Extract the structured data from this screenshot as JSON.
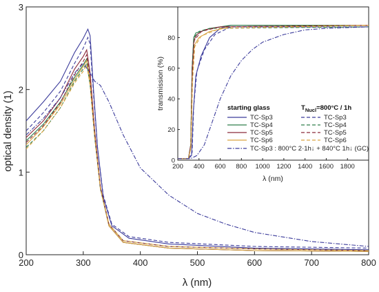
{
  "chart_data": [
    {
      "type": "line",
      "xlabel": "λ (nm)",
      "ylabel": "optical density (1)",
      "xlim": [
        200,
        800
      ],
      "ylim": [
        0,
        3
      ],
      "x_ticks": [
        "200",
        "300",
        "400",
        "500",
        "600",
        "700",
        "800"
      ],
      "y_ticks": [
        "0",
        "1",
        "2",
        "3"
      ],
      "series": [
        {
          "name": "TC-Sp3",
          "group": "starting glass",
          "color": "#3a3a9a",
          "dash": "solid",
          "points": [
            [
              200,
              1.62
            ],
            [
              230,
              1.85
            ],
            [
              260,
              2.1
            ],
            [
              285,
              2.45
            ],
            [
              300,
              2.62
            ],
            [
              308,
              2.73
            ],
            [
              312,
              2.65
            ],
            [
              318,
              2.0
            ],
            [
              325,
              1.3
            ],
            [
              335,
              0.7
            ],
            [
              350,
              0.35
            ],
            [
              380,
              0.2
            ],
            [
              450,
              0.13
            ],
            [
              600,
              0.08
            ],
            [
              800,
              0.06
            ]
          ]
        },
        {
          "name": "TC-Sp4",
          "group": "starting glass",
          "color": "#2e7d4a",
          "dash": "solid",
          "points": [
            [
              200,
              1.38
            ],
            [
              230,
              1.58
            ],
            [
              260,
              1.85
            ],
            [
              285,
              2.15
            ],
            [
              300,
              2.3
            ],
            [
              306,
              2.37
            ],
            [
              312,
              2.1
            ],
            [
              320,
              1.45
            ],
            [
              330,
              0.8
            ],
            [
              345,
              0.35
            ],
            [
              370,
              0.15
            ],
            [
              450,
              0.08
            ],
            [
              600,
              0.05
            ],
            [
              800,
              0.04
            ]
          ]
        },
        {
          "name": "TC-Sp5",
          "group": "starting glass",
          "color": "#8b2a3a",
          "dash": "solid",
          "points": [
            [
              200,
              1.42
            ],
            [
              230,
              1.62
            ],
            [
              260,
              1.9
            ],
            [
              285,
              2.25
            ],
            [
              300,
              2.4
            ],
            [
              306,
              2.48
            ],
            [
              312,
              2.2
            ],
            [
              320,
              1.5
            ],
            [
              330,
              0.82
            ],
            [
              345,
              0.35
            ],
            [
              370,
              0.15
            ],
            [
              450,
              0.08
            ],
            [
              600,
              0.05
            ],
            [
              800,
              0.04
            ]
          ]
        },
        {
          "name": "TC-Sp6",
          "group": "starting glass",
          "color": "#d9a441",
          "dash": "solid",
          "points": [
            [
              200,
              1.33
            ],
            [
              230,
              1.55
            ],
            [
              260,
              1.82
            ],
            [
              285,
              2.12
            ],
            [
              300,
              2.28
            ],
            [
              306,
              2.35
            ],
            [
              312,
              2.1
            ],
            [
              320,
              1.45
            ],
            [
              330,
              0.8
            ],
            [
              345,
              0.35
            ],
            [
              370,
              0.15
            ],
            [
              450,
              0.08
            ],
            [
              600,
              0.05
            ],
            [
              800,
              0.04
            ]
          ]
        },
        {
          "name": "TC-Sp3",
          "group": "TNucl=800°C / 1h",
          "color": "#3a3a9a",
          "dash": "dash",
          "points": [
            [
              200,
              1.5
            ],
            [
              230,
              1.72
            ],
            [
              260,
              1.98
            ],
            [
              285,
              2.32
            ],
            [
              300,
              2.5
            ],
            [
              308,
              2.63
            ],
            [
              312,
              2.55
            ],
            [
              318,
              1.95
            ],
            [
              325,
              1.3
            ],
            [
              335,
              0.72
            ],
            [
              350,
              0.37
            ],
            [
              380,
              0.22
            ],
            [
              450,
              0.15
            ],
            [
              600,
              0.1
            ],
            [
              800,
              0.08
            ]
          ]
        },
        {
          "name": "TC-Sp4",
          "group": "TNucl=800°C / 1h",
          "color": "#2e7d4a",
          "dash": "dash",
          "points": [
            [
              200,
              1.3
            ],
            [
              230,
              1.5
            ],
            [
              260,
              1.78
            ],
            [
              285,
              2.1
            ],
            [
              300,
              2.25
            ],
            [
              306,
              2.32
            ],
            [
              312,
              2.05
            ],
            [
              320,
              1.42
            ],
            [
              330,
              0.8
            ],
            [
              345,
              0.37
            ],
            [
              370,
              0.17
            ],
            [
              450,
              0.1
            ],
            [
              600,
              0.07
            ],
            [
              800,
              0.05
            ]
          ]
        },
        {
          "name": "TC-Sp5",
          "group": "TNucl=800°C / 1h",
          "color": "#8b2a3a",
          "dash": "dash",
          "points": [
            [
              200,
              1.36
            ],
            [
              230,
              1.56
            ],
            [
              260,
              1.84
            ],
            [
              285,
              2.18
            ],
            [
              300,
              2.34
            ],
            [
              306,
              2.42
            ],
            [
              312,
              2.15
            ],
            [
              320,
              1.48
            ],
            [
              330,
              0.82
            ],
            [
              345,
              0.37
            ],
            [
              370,
              0.17
            ],
            [
              450,
              0.1
            ],
            [
              600,
              0.07
            ],
            [
              800,
              0.05
            ]
          ]
        },
        {
          "name": "TC-Sp6",
          "group": "TNucl=800°C / 1h",
          "color": "#d9a441",
          "dash": "dash",
          "points": [
            [
              200,
              1.28
            ],
            [
              230,
              1.5
            ],
            [
              260,
              1.78
            ],
            [
              285,
              2.08
            ],
            [
              300,
              2.22
            ],
            [
              306,
              2.3
            ],
            [
              312,
              2.05
            ],
            [
              320,
              1.42
            ],
            [
              330,
              0.8
            ],
            [
              345,
              0.37
            ],
            [
              370,
              0.17
            ],
            [
              450,
              0.1
            ],
            [
              600,
              0.07
            ],
            [
              800,
              0.05
            ]
          ]
        },
        {
          "name": "TC-Sp3 : 800°C 2·1h↓ + 840°C 1h↓ (GC)",
          "group": "",
          "color": "#3a3a9a",
          "dash": "dashdot",
          "points": [
            [
              200,
              1.45
            ],
            [
              230,
              1.65
            ],
            [
              260,
              1.9
            ],
            [
              285,
              2.2
            ],
            [
              300,
              2.32
            ],
            [
              310,
              2.22
            ],
            [
              320,
              2.1
            ],
            [
              330,
              2.05
            ],
            [
              345,
              1.85
            ],
            [
              370,
              1.45
            ],
            [
              400,
              1.05
            ],
            [
              450,
              0.72
            ],
            [
              500,
              0.5
            ],
            [
              550,
              0.37
            ],
            [
              600,
              0.27
            ],
            [
              700,
              0.16
            ],
            [
              800,
              0.1
            ]
          ]
        }
      ]
    },
    {
      "type": "line",
      "xlabel": "λ (nm)",
      "ylabel": "transmission (%)",
      "xlim": [
        200,
        2000
      ],
      "ylim": [
        0,
        100
      ],
      "x_ticks": [
        "200",
        "400",
        "600",
        "800",
        "1000",
        "1200",
        "1400",
        "1600",
        "1800"
      ],
      "y_ticks": [
        "0",
        "20",
        "40",
        "60",
        "80"
      ],
      "series": [
        {
          "name": "TC-Sp3",
          "color": "#3a3a9a",
          "dash": "solid",
          "points": [
            [
              200,
              1
            ],
            [
              300,
              1
            ],
            [
              330,
              3
            ],
            [
              345,
              30
            ],
            [
              370,
              55
            ],
            [
              420,
              68
            ],
            [
              500,
              80
            ],
            [
              600,
              86
            ],
            [
              700,
              88
            ],
            [
              1000,
              88
            ],
            [
              2000,
              88
            ]
          ]
        },
        {
          "name": "TC-Sp4",
          "color": "#2e7d4a",
          "dash": "solid",
          "points": [
            [
              200,
              1
            ],
            [
              300,
              1
            ],
            [
              322,
              10
            ],
            [
              335,
              60
            ],
            [
              350,
              80
            ],
            [
              370,
              83
            ],
            [
              420,
              84
            ],
            [
              500,
              86
            ],
            [
              700,
              88
            ],
            [
              2000,
              88
            ]
          ]
        },
        {
          "name": "TC-Sp5",
          "color": "#8b2a3a",
          "dash": "solid",
          "points": [
            [
              200,
              1
            ],
            [
              300,
              1
            ],
            [
              322,
              10
            ],
            [
              335,
              60
            ],
            [
              350,
              78
            ],
            [
              380,
              82
            ],
            [
              450,
              85
            ],
            [
              600,
              87
            ],
            [
              2000,
              88
            ]
          ]
        },
        {
          "name": "TC-Sp6",
          "color": "#d9a441",
          "dash": "solid",
          "points": [
            [
              200,
              1
            ],
            [
              300,
              1
            ],
            [
              322,
              8
            ],
            [
              338,
              55
            ],
            [
              355,
              75
            ],
            [
              400,
              80
            ],
            [
              500,
              84
            ],
            [
              700,
              87
            ],
            [
              2000,
              88
            ]
          ]
        },
        {
          "name": "TC-Sp3",
          "color": "#3a3a9a",
          "dash": "dash",
          "points": [
            [
              200,
              1
            ],
            [
              300,
              1
            ],
            [
              335,
              5
            ],
            [
              350,
              35
            ],
            [
              380,
              58
            ],
            [
              450,
              72
            ],
            [
              550,
              82
            ],
            [
              700,
              87
            ],
            [
              2000,
              87
            ]
          ]
        },
        {
          "name": "TC-Sp4",
          "color": "#2e7d4a",
          "dash": "dash",
          "points": [
            [
              200,
              1
            ],
            [
              300,
              1
            ],
            [
              322,
              10
            ],
            [
              336,
              62
            ],
            [
              352,
              80
            ],
            [
              400,
              84
            ],
            [
              500,
              86
            ],
            [
              2000,
              87
            ]
          ]
        },
        {
          "name": "TC-Sp5",
          "color": "#8b2a3a",
          "dash": "dash",
          "points": [
            [
              200,
              1
            ],
            [
              300,
              1
            ],
            [
              324,
              10
            ],
            [
              338,
              58
            ],
            [
              355,
              78
            ],
            [
              420,
              84
            ],
            [
              600,
              87
            ],
            [
              2000,
              88
            ]
          ]
        },
        {
          "name": "TC-Sp6",
          "color": "#d9a441",
          "dash": "dash",
          "points": [
            [
              200,
              1
            ],
            [
              300,
              1
            ],
            [
              324,
              8
            ],
            [
              340,
              52
            ],
            [
              360,
              74
            ],
            [
              420,
              81
            ],
            [
              600,
              86
            ],
            [
              2000,
              88
            ]
          ]
        },
        {
          "name": "TC-Sp3 : 800°C 2·1h↓ + 840°C 1h↓ (GC)",
          "color": "#3a3a9a",
          "dash": "dashdot",
          "points": [
            [
              200,
              1
            ],
            [
              320,
              1
            ],
            [
              380,
              3
            ],
            [
              450,
              10
            ],
            [
              500,
              20
            ],
            [
              600,
              40
            ],
            [
              700,
              55
            ],
            [
              800,
              65
            ],
            [
              900,
              72
            ],
            [
              1000,
              77
            ],
            [
              1200,
              82
            ],
            [
              1400,
              85
            ],
            [
              1600,
              86
            ],
            [
              2000,
              87
            ]
          ]
        }
      ]
    }
  ],
  "legend": {
    "col1_header": "starting glass",
    "col2_header": "T",
    "col2_header_sub": "Nucl",
    "col2_header_rest": "=800°C / 1h",
    "col1": [
      "TC-Sp3",
      "TC-Sp4",
      "TC-Sp5",
      "TC-Sp6"
    ],
    "col2": [
      "TC-Sp3",
      "TC-Sp4",
      "TC-Sp5",
      "TC-Sp6"
    ],
    "gc_label": "TC-Sp3 : 800°C 2·1h↓ + 840°C 1h↓ (GC)",
    "colors": [
      "#3a3a9a",
      "#2e7d4a",
      "#8b2a3a",
      "#d9a441"
    ]
  }
}
